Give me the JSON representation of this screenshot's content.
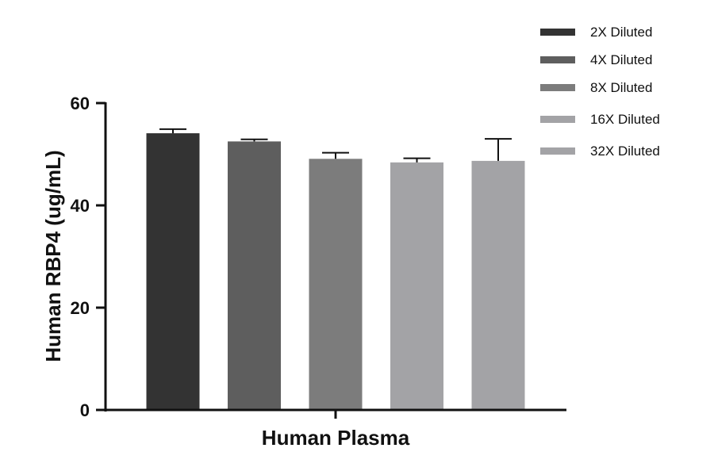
{
  "chart_data": {
    "type": "bar",
    "title": "",
    "xlabel": "Human Plasma",
    "ylabel": "Human RBP4 (ug/mL)",
    "ylim": [
      0,
      60
    ],
    "yticks": [
      "0",
      "20",
      "40",
      "60"
    ],
    "grid": false,
    "legend_position": "top-right",
    "series": [
      {
        "name": "2X Diluted",
        "value": 54.1,
        "error": 0.8,
        "color": "#333333"
      },
      {
        "name": "4X Diluted",
        "value": 52.5,
        "error": 0.4,
        "color": "#5e5e5e"
      },
      {
        "name": "8X Diluted",
        "value": 49.1,
        "error": 1.2,
        "color": "#7c7c7c"
      },
      {
        "name": "16X Diluted",
        "value": 48.4,
        "error": 0.8,
        "color": "#a3a3a6"
      },
      {
        "name": "32X Diluted",
        "value": 48.7,
        "error": 4.3,
        "color": "#a3a3a6"
      }
    ]
  }
}
